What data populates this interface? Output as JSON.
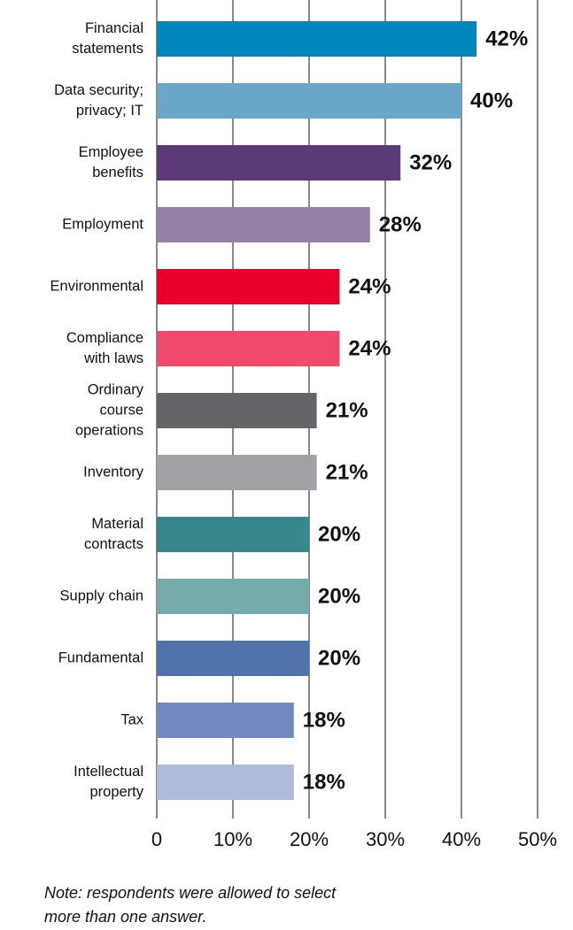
{
  "chart_data": {
    "type": "barh",
    "categories": [
      "Financial\nstatements",
      "Data security;\nprivacy; IT",
      "Employee\nbenefits",
      "Employment",
      "Environmental",
      "Compliance\nwith laws",
      "Ordinary\ncourse\noperations",
      "Inventory",
      "Material\ncontracts",
      "Supply chain",
      "Fundamental",
      "Tax",
      "Intellectual\nproperty"
    ],
    "values": [
      42,
      40,
      32,
      28,
      24,
      24,
      21,
      21,
      20,
      20,
      20,
      18,
      18
    ],
    "value_labels": [
      "42%",
      "40%",
      "32%",
      "28%",
      "24%",
      "24%",
      "21%",
      "21%",
      "20%",
      "20%",
      "20%",
      "18%",
      "18%"
    ],
    "colors": [
      "#0086bb",
      "#6aa6c6",
      "#5c3a78",
      "#9580a8",
      "#e9002b",
      "#f04a6a",
      "#636568",
      "#a0a1a4",
      "#38878a",
      "#77aaab",
      "#5072ab",
      "#7189be",
      "#b0bbdb"
    ],
    "xlim": [
      0,
      50
    ],
    "xticks": [
      0,
      {
        "value": 10,
        "label": "10%"
      },
      {
        "value": 20,
        "label": "20%"
      },
      {
        "value": 30,
        "label": "30%"
      },
      {
        "value": 40,
        "label": "40%"
      },
      {
        "value": 50,
        "label": "50%"
      }
    ],
    "grid": true,
    "note": "Note: respondents were allowed to select\nmore than one answer."
  }
}
